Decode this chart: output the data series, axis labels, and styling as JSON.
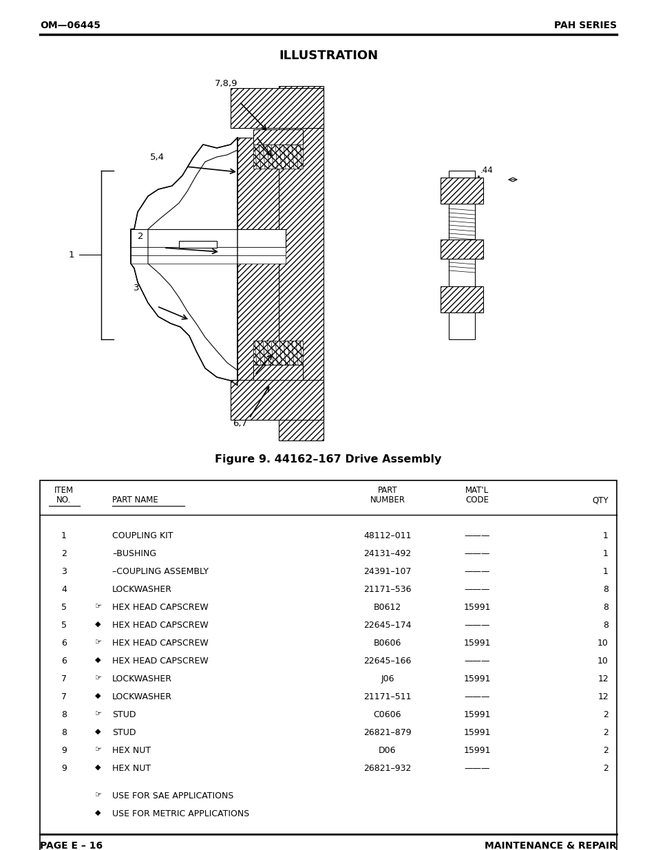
{
  "header_left": "OM—06445",
  "header_right": "PAH SERIES",
  "illustration_title": "ILLUSTRATION",
  "figure_caption": "Figure 9. 44162–167 Drive Assembly",
  "footer_left": "PAGE E – 16",
  "footer_right": "MAINTENANCE & REPAIR",
  "table_rows": [
    [
      "1",
      "",
      "COUPLING KIT",
      "48112–011",
      "———",
      "1"
    ],
    [
      "2",
      "",
      "–BUSHING",
      "24131–492",
      "———",
      "1"
    ],
    [
      "3",
      "",
      "–COUPLING ASSEMBLY",
      "24391–107",
      "———",
      "1"
    ],
    [
      "4",
      "",
      "LOCKWASHER",
      "21171–536",
      "———",
      "8"
    ],
    [
      "5",
      "sae",
      "HEX HEAD CAPSCREW",
      "B0612",
      "15991",
      "8"
    ],
    [
      "5",
      "met",
      "HEX HEAD CAPSCREW",
      "22645–174",
      "———",
      "8"
    ],
    [
      "6",
      "sae",
      "HEX HEAD CAPSCREW",
      "B0606",
      "15991",
      "10"
    ],
    [
      "6",
      "met",
      "HEX HEAD CAPSCREW",
      "22645–166",
      "———",
      "10"
    ],
    [
      "7",
      "sae",
      "LOCKWASHER",
      "J06",
      "15991",
      "12"
    ],
    [
      "7",
      "met",
      "LOCKWASHER",
      "21171–511",
      "———",
      "12"
    ],
    [
      "8",
      "sae",
      "STUD",
      "C0606",
      "15991",
      "2"
    ],
    [
      "8",
      "met",
      "STUD",
      "26821–879",
      "15991",
      "2"
    ],
    [
      "9",
      "sae",
      "HEX NUT",
      "D06",
      "15991",
      "2"
    ],
    [
      "9",
      "met",
      "HEX NUT",
      "26821–932",
      "———",
      "2"
    ]
  ],
  "bg_color": "#ffffff",
  "text_color": "#000000"
}
